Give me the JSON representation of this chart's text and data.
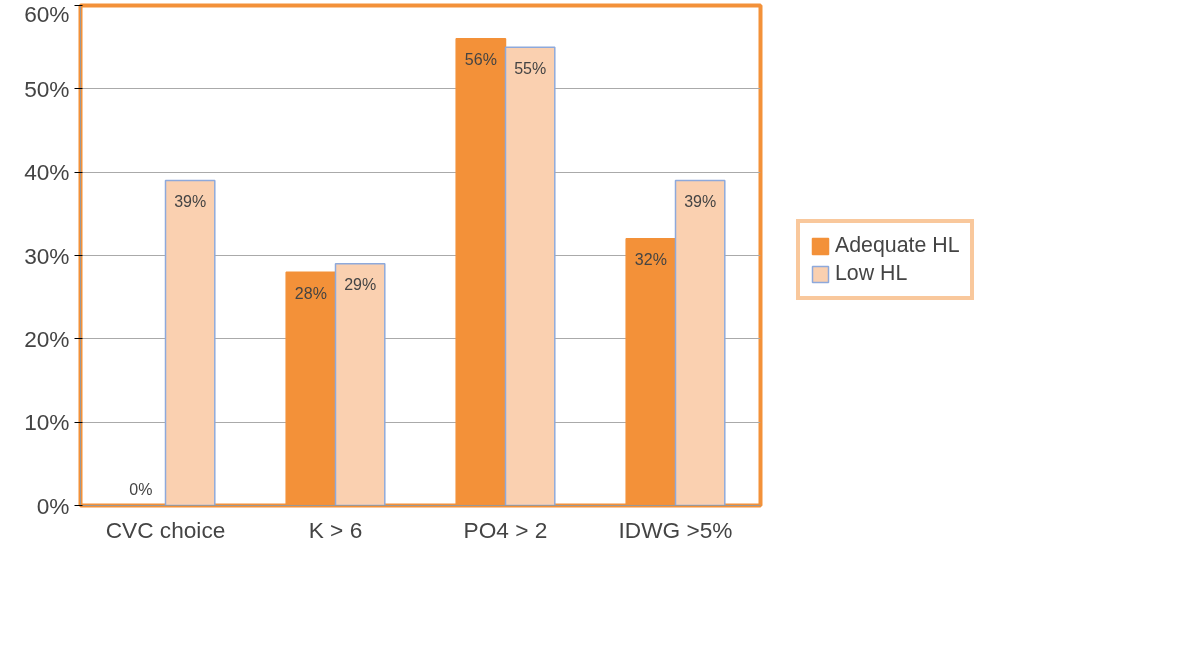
{
  "chart_data": {
    "type": "bar",
    "categories": [
      "CVC choice",
      "K > 6",
      "PO4 > 2",
      "IDWG >5%"
    ],
    "series": [
      {
        "name": "Adequate HL",
        "color": "#f39139",
        "values": [
          0,
          28,
          56,
          32
        ],
        "value_labels": [
          "0%",
          "28%",
          "56%",
          "32%"
        ]
      },
      {
        "name": "Low HL",
        "color": "#fad0b0",
        "values": [
          39,
          29,
          55,
          39
        ],
        "value_labels": [
          "39%",
          "29%",
          "55%",
          "39%"
        ]
      }
    ],
    "ylim": [
      0,
      60
    ],
    "yticks": [
      {
        "value": 0,
        "label": "0%"
      },
      {
        "value": 10,
        "label": "10%"
      },
      {
        "value": 20,
        "label": "20%"
      },
      {
        "value": 30,
        "label": "30%"
      },
      {
        "value": 40,
        "label": "40%"
      },
      {
        "value": 50,
        "label": "50%"
      },
      {
        "value": 60,
        "label": "60%"
      }
    ],
    "grid": "y",
    "legend": "right"
  }
}
